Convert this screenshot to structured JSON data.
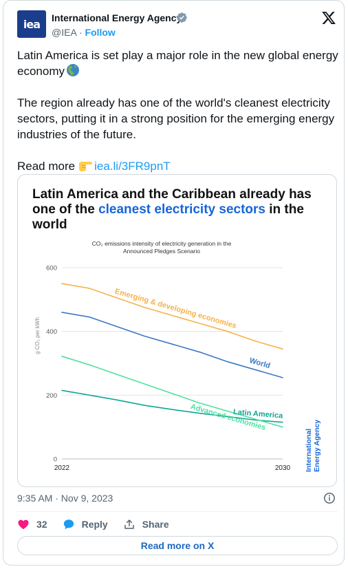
{
  "author": {
    "name": "International Energy Agency",
    "handle": "@IEA",
    "separator": "·",
    "follow_label": "Follow",
    "avatar_text": "iea"
  },
  "tweet": {
    "line1": "Latin America is set play a major role in the new global energy economy",
    "line2": "The region already has one of the world's cleanest electricity sectors, putting it in a strong position for the emerging energy industries of the future.",
    "readmore_prefix": "Read more",
    "link_text": "iea.li/3FR9pnT"
  },
  "chart_card": {
    "title_part1": "Latin America and the Caribbean already has one of the ",
    "title_highlight": "cleanest electricity sectors",
    "title_part2": " in the world",
    "brand_text": [
      "International",
      "Energy Agency"
    ]
  },
  "chart_data": {
    "type": "line",
    "title": "CO₂ emissions intensity of electricity generation in the Announced Pledges Scenario",
    "title_lines": [
      "CO₂ emissions intensity of electricity generation in the",
      "Announced Pledges Scenario"
    ],
    "ylabel": "g CO₂ per kWh",
    "xlabel": "",
    "x_ticks": [
      "2022",
      "2030"
    ],
    "xlim": [
      2022,
      2030
    ],
    "ylim": [
      0,
      600
    ],
    "y_ticks": [
      0,
      200,
      400,
      600
    ],
    "grid": true,
    "x": [
      2022,
      2023,
      2024,
      2025,
      2026,
      2027,
      2028,
      2029,
      2030
    ],
    "series": [
      {
        "name": "Emerging & developing economies",
        "color": "#f5b24a",
        "values": [
          550,
          535,
          505,
          475,
          450,
          425,
          400,
          370,
          345
        ]
      },
      {
        "name": "World",
        "color": "#3a78c5",
        "values": [
          460,
          445,
          415,
          385,
          360,
          335,
          305,
          280,
          255
        ]
      },
      {
        "name": "Latin America",
        "color": "#10a595",
        "values": [
          215,
          200,
          185,
          168,
          155,
          143,
          133,
          122,
          115
        ]
      },
      {
        "name": "Advanced economies",
        "color": "#4ee0a0",
        "values": [
          322,
          295,
          265,
          235,
          205,
          175,
          150,
          125,
          100
        ]
      }
    ]
  },
  "meta": {
    "timestamp": "9:35 AM · Nov 9, 2023"
  },
  "actions": {
    "likes": "32",
    "reply_label": "Reply",
    "share_label": "Share"
  },
  "cta": {
    "label": "Read more on X"
  },
  "colors": {
    "accent": "#1d9bf0",
    "like": "#f91880",
    "brand_blue": "#1565d8"
  }
}
